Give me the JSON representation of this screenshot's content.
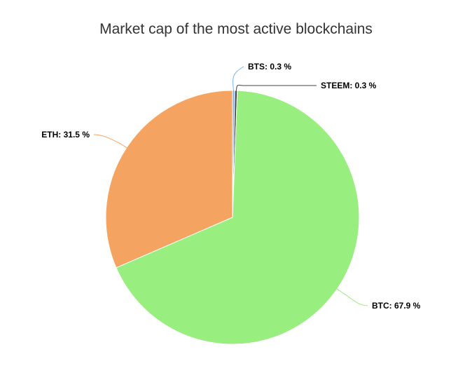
{
  "chart_data": {
    "type": "pie",
    "title": "Market cap of the most active blockchains",
    "slices": [
      {
        "name": "BTS",
        "value": 0.3,
        "label": "BTS: 0.3 %",
        "color": "#7cb5ec"
      },
      {
        "name": "STEEM",
        "value": 0.3,
        "label": "STEEM: 0.3 %",
        "color": "#434348"
      },
      {
        "name": "BTC",
        "value": 67.9,
        "label": "BTC: 67.9 %",
        "color": "#98ee7e"
      },
      {
        "name": "ETH",
        "value": 31.5,
        "label": "ETH: 31.5 %",
        "color": "#f4a460"
      }
    ],
    "start_angle_deg": 0,
    "direction": "clockwise",
    "data_labels": "outside-with-connectors"
  }
}
